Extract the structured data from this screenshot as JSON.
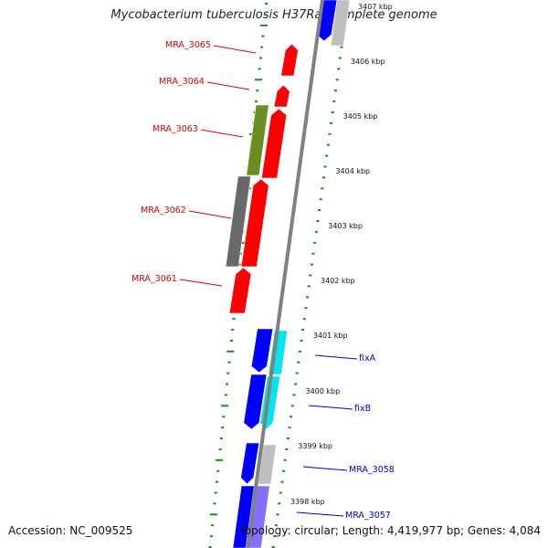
{
  "title": "Mycobacterium tuberculosis H37Ra, complete genome",
  "accession": "Accession: NC_009525",
  "topology": "Topology: circular; Length: 4,419,977 bp; Genes: 4,084",
  "colors": {
    "forward_gene": "#ff0000",
    "reverse_gene": "#0000ff",
    "cds_green": "#6b8e23",
    "cds_gray": "#696969",
    "cds_cyan": "#00e5ee",
    "cds_light_gray": "#bfbfbf",
    "cds_lavender": "#8470ff",
    "tick_green": "#1a8a1a",
    "label_red": "#dd0000",
    "label_blue": "#0000cc",
    "backbone": "#808080"
  },
  "scale_ticks": [
    {
      "kbp": 3407,
      "label": "3407 kbp"
    },
    {
      "kbp": 3406,
      "label": "3406 kbp"
    },
    {
      "kbp": 3405,
      "label": "3405 kbp"
    },
    {
      "kbp": 3404,
      "label": "3404 kbp"
    },
    {
      "kbp": 3403,
      "label": "3403 kbp"
    },
    {
      "kbp": 3402,
      "label": "3402 kbp"
    },
    {
      "kbp": 3401,
      "label": "3401 kbp"
    },
    {
      "kbp": 3400,
      "label": "3400 kbp"
    },
    {
      "kbp": 3399,
      "label": "3399 kbp"
    },
    {
      "kbp": 3398,
      "label": "3398 kbp"
    }
  ],
  "gene_labels": [
    {
      "name": "MRA_3065",
      "strand": "forward"
    },
    {
      "name": "MRA_3064",
      "strand": "forward"
    },
    {
      "name": "MRA_3063",
      "strand": "forward"
    },
    {
      "name": "MRA_3062",
      "strand": "forward"
    },
    {
      "name": "MRA_3061",
      "strand": "forward"
    },
    {
      "name": "fixA",
      "strand": "reverse"
    },
    {
      "name": "fixB",
      "strand": "reverse"
    },
    {
      "name": "MRA_3058",
      "strand": "reverse"
    },
    {
      "name": "MRA_3057",
      "strand": "reverse"
    }
  ]
}
